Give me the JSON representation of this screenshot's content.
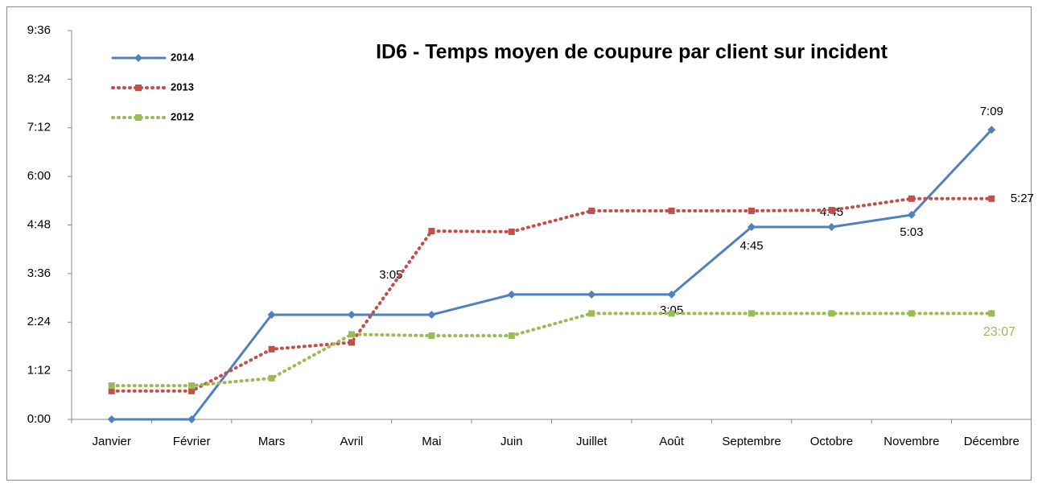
{
  "chart_data": {
    "type": "line",
    "title": "ID6 - Temps moyen de coupure par client sur incident",
    "categories": [
      "Janvier",
      "Février",
      "Mars",
      "Avril",
      "Mai",
      "Juin",
      "Juillet",
      "Août",
      "Septembre",
      "Octobre",
      "Novembre",
      "Décembre"
    ],
    "series": [
      {
        "name": "2014",
        "color": "#4f81bd",
        "dash": false,
        "values": [
          0,
          0,
          155,
          155,
          155,
          185,
          185,
          185,
          285,
          285,
          303,
          429
        ],
        "value_labels": [
          null,
          null,
          null,
          null,
          null,
          "3:05",
          null,
          "3:05",
          "4:45",
          "4:45",
          "5:03",
          "7:09"
        ]
      },
      {
        "name": "2013",
        "color": "#c0504d",
        "dash": true,
        "values": [
          42,
          42,
          104,
          114,
          279,
          278,
          309,
          309,
          309,
          310,
          327,
          327
        ],
        "value_labels": [
          null,
          null,
          null,
          null,
          null,
          null,
          null,
          null,
          null,
          null,
          null,
          "5:27"
        ]
      },
      {
        "name": "2012",
        "color": "#9bbb59",
        "dash": true,
        "values": [
          50,
          50,
          61,
          126,
          124,
          124,
          157,
          157,
          157,
          157,
          157,
          157
        ]
      }
    ],
    "annotations": [
      {
        "text": "23:07",
        "color": "#9bbb59"
      }
    ],
    "ylim": [
      0,
      576
    ],
    "yticks": [
      {
        "value": 0,
        "label": "0:00"
      },
      {
        "value": 72,
        "label": "1:12"
      },
      {
        "value": 144,
        "label": "2:24"
      },
      {
        "value": 216,
        "label": "3:36"
      },
      {
        "value": 288,
        "label": "4:48"
      },
      {
        "value": 360,
        "label": "6:00"
      },
      {
        "value": 432,
        "label": "7:12"
      },
      {
        "value": 504,
        "label": "8:24"
      },
      {
        "value": 576,
        "label": "9:36"
      }
    ],
    "legend": "top-left"
  }
}
